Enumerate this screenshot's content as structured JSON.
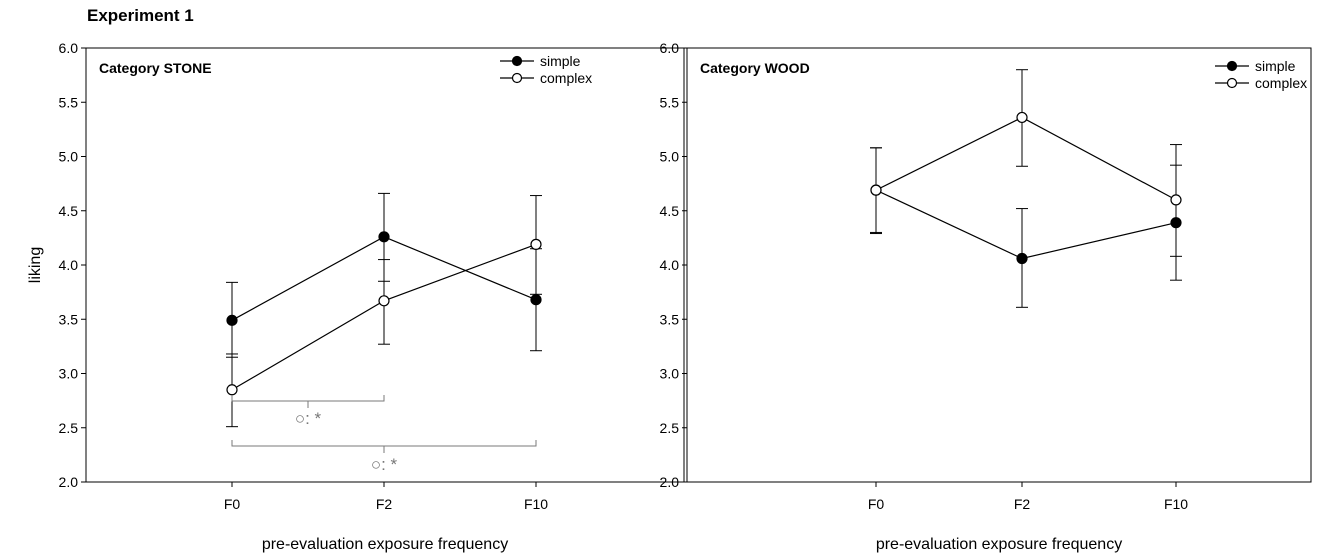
{
  "figure_title": "Experiment 1",
  "chart_data": [
    {
      "type": "line",
      "title": "Category STONE",
      "xlabel": "pre-evaluation exposure frequency",
      "ylabel": "liking",
      "categories": [
        "F0",
        "F2",
        "F10"
      ],
      "ylim": [
        2.0,
        6.0
      ],
      "yticks": [
        "2.0",
        "2.5",
        "3.0",
        "3.5",
        "4.0",
        "4.5",
        "5.0",
        "5.5",
        "6.0"
      ],
      "legend_position": "top-right",
      "grid": false,
      "series": [
        {
          "name": "simple",
          "marker": "filled-circle",
          "values": [
            3.49,
            4.26,
            3.68
          ],
          "error_low": [
            3.15,
            3.85,
            3.21
          ],
          "error_high": [
            3.84,
            4.66,
            4.15
          ]
        },
        {
          "name": "complex",
          "marker": "open-circle",
          "values": [
            2.85,
            3.67,
            4.19
          ],
          "error_low": [
            2.51,
            3.27,
            3.73
          ],
          "error_high": [
            3.18,
            4.05,
            4.64
          ]
        }
      ],
      "annotations": [
        {
          "from": "F0",
          "to": "F2",
          "text": "○: *"
        },
        {
          "from": "F0",
          "to": "F10",
          "text": "○: *"
        }
      ]
    },
    {
      "type": "line",
      "title": "Category WOOD",
      "xlabel": "pre-evaluation exposure frequency",
      "ylabel": "",
      "categories": [
        "F0",
        "F2",
        "F10"
      ],
      "ylim": [
        2.0,
        6.0
      ],
      "yticks": [
        "2.0",
        "2.5",
        "3.0",
        "3.5",
        "4.0",
        "4.5",
        "5.0",
        "5.5",
        "6.0"
      ],
      "legend_position": "top-right",
      "grid": false,
      "series": [
        {
          "name": "simple",
          "marker": "filled-circle",
          "values": [
            4.69,
            4.06,
            4.39
          ],
          "error_low": [
            4.29,
            3.61,
            3.86
          ],
          "error_high": [
            5.08,
            4.52,
            4.92
          ]
        },
        {
          "name": "complex",
          "marker": "open-circle",
          "values": [
            4.69,
            5.36,
            4.6
          ],
          "error_low": [
            4.3,
            4.91,
            4.08
          ],
          "error_high": [
            5.08,
            5.8,
            5.11
          ]
        }
      ],
      "annotations": []
    }
  ]
}
